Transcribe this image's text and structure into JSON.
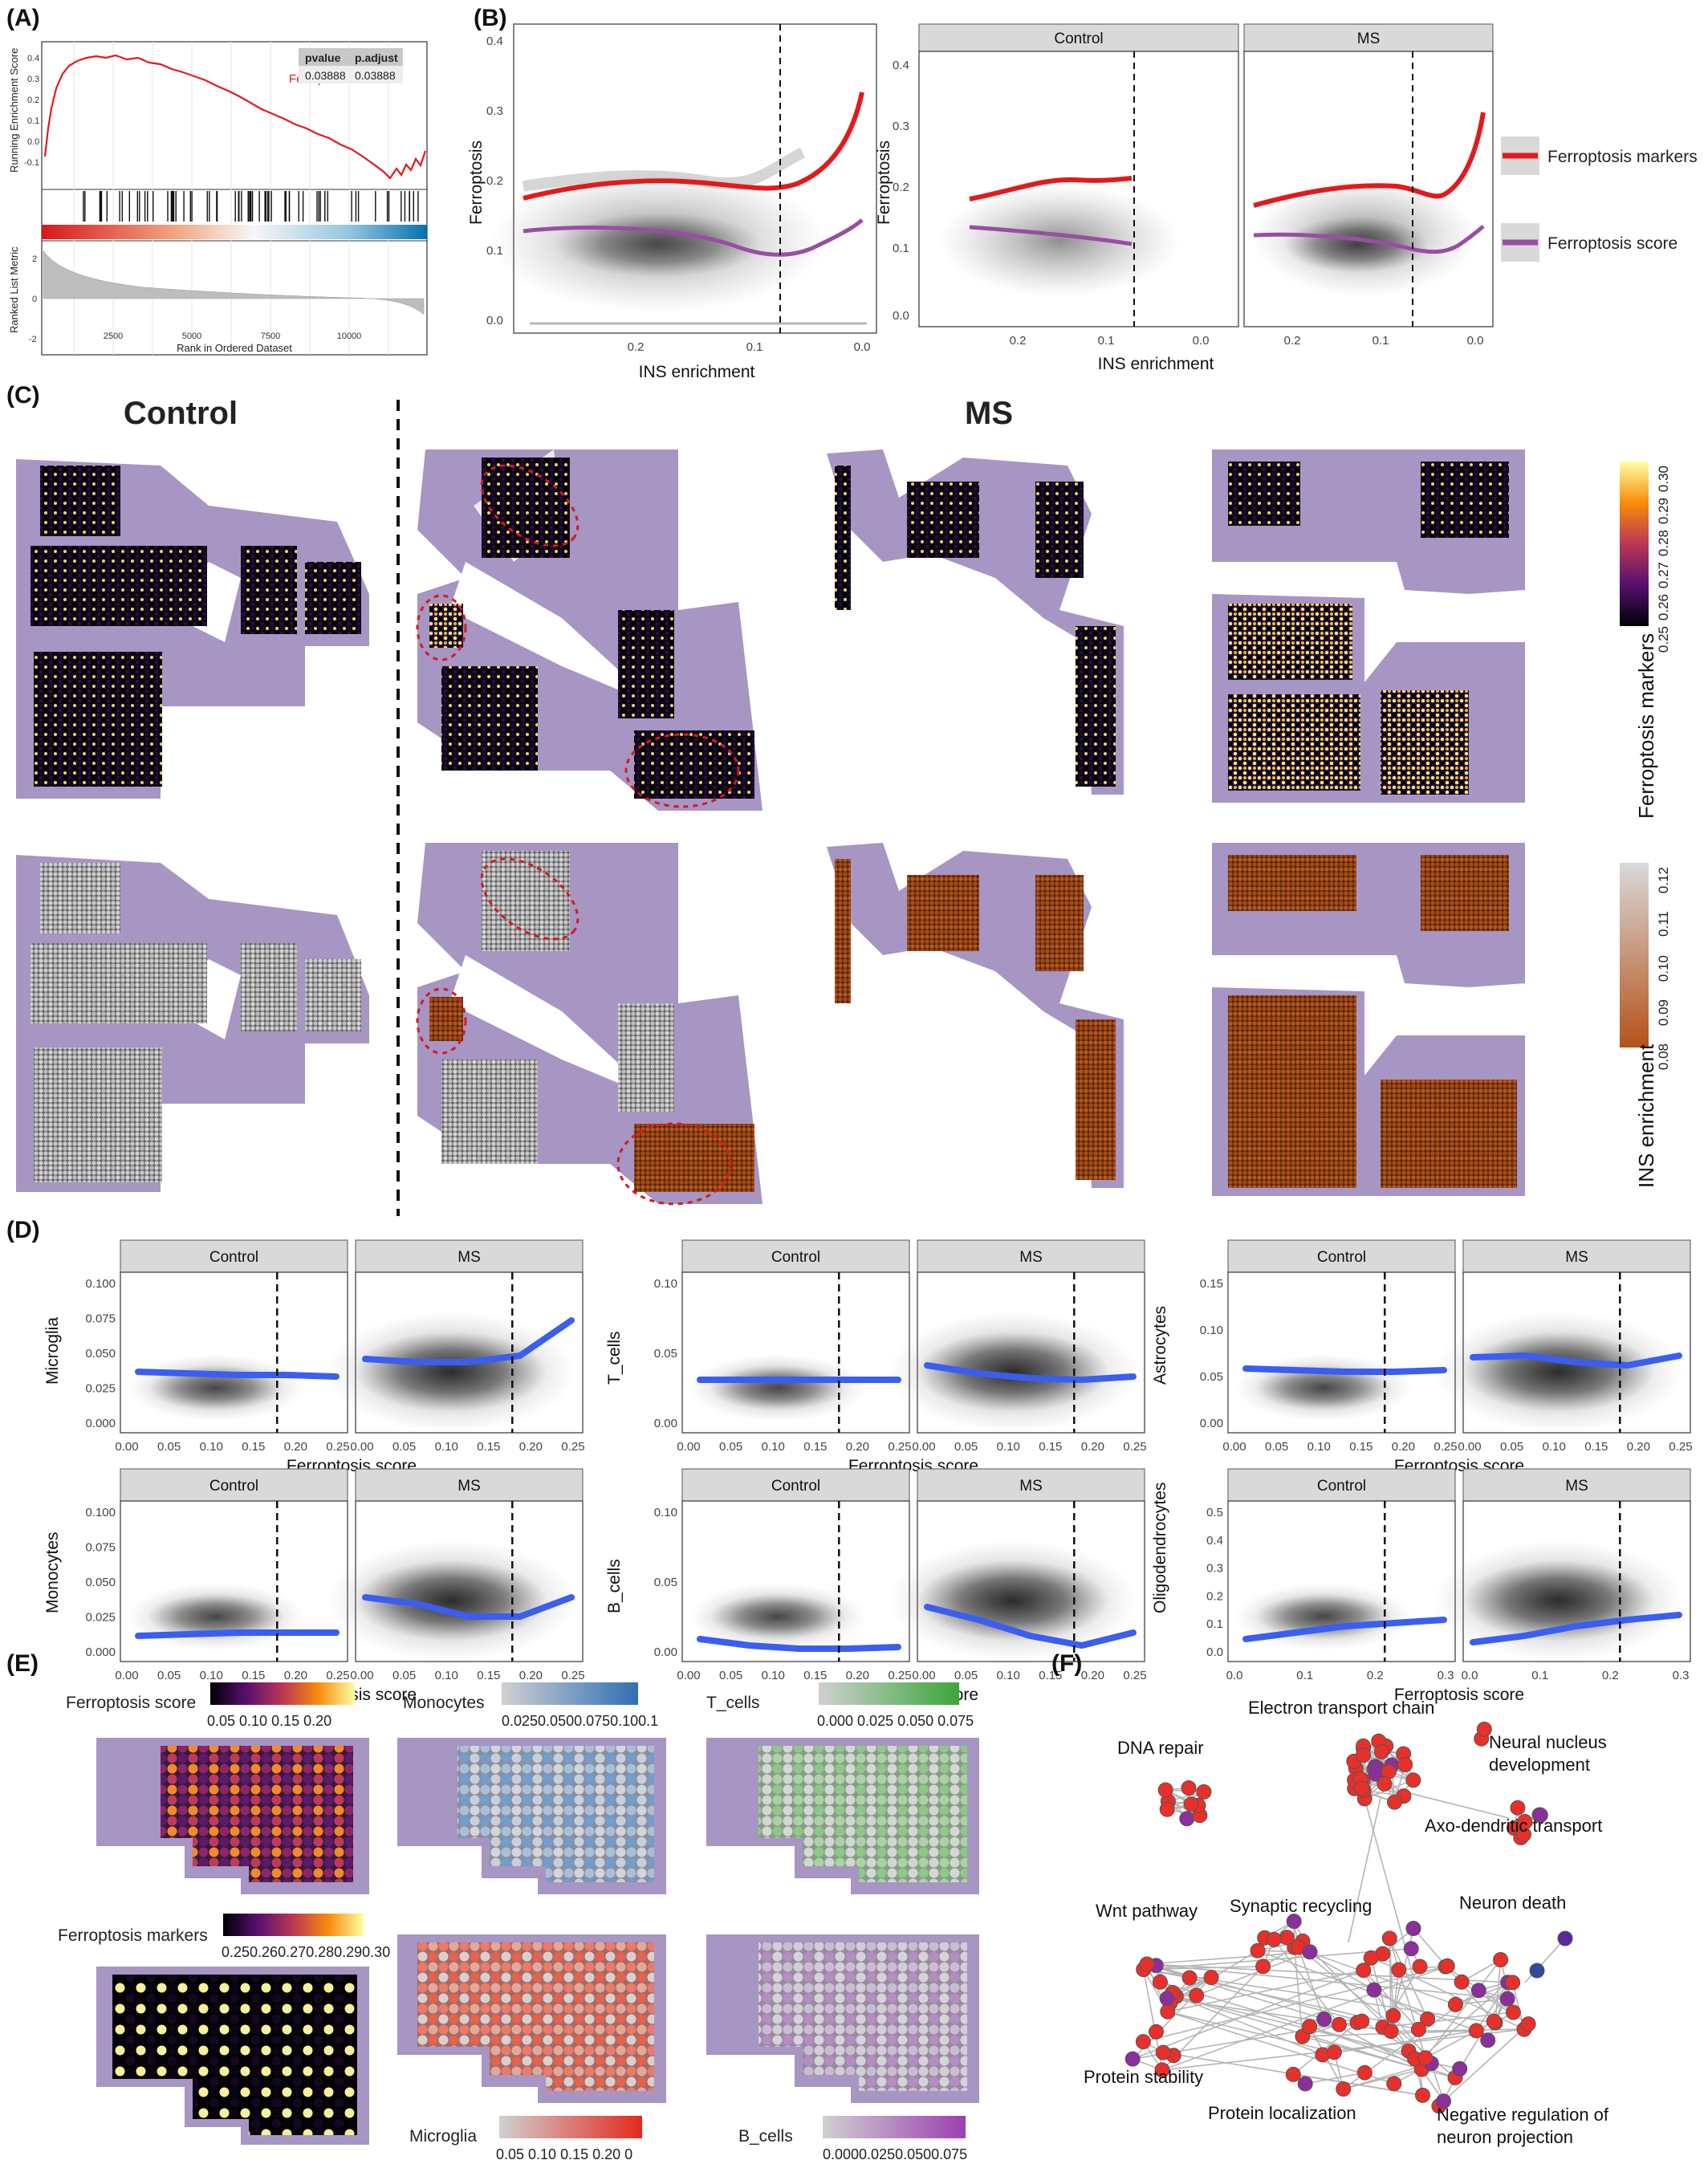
{
  "panels": {
    "A": "(A)",
    "B": "(B)",
    "C": "(C)",
    "D": "(D)",
    "E": "(E)",
    "F": "(F)"
  },
  "panelA": {
    "ylabel_top": "Running Enrichment Score",
    "ylabel_bottom": "Ranked List Metric",
    "xlabel": "Rank in Ordered Dataset",
    "geneset": "Ferroptosis",
    "table_headers": [
      "pvalue",
      "p.adjust"
    ],
    "table_values": [
      "0.03888",
      "0.03888"
    ],
    "es_ticks": [
      "0.4",
      "0.3",
      "0.2",
      "0.1",
      "0.0",
      "-0.1"
    ],
    "metric_ticks": [
      "2",
      "0",
      "-2"
    ],
    "x_ticks": [
      "2500",
      "5000",
      "7500",
      "10000"
    ]
  },
  "panelB": {
    "ylabel": "Ferroptosis",
    "xlabel": "INS enrichment",
    "y_ticks": [
      "0.4",
      "0.3",
      "0.2",
      "0.1",
      "0.0"
    ],
    "x_ticks": [
      "0.2",
      "0.1",
      "0.0"
    ],
    "strips": [
      "Control",
      "MS"
    ],
    "legend": [
      {
        "label": "Ferroptosis markers",
        "color": "#e31a1c"
      },
      {
        "label": "Ferroptosis score",
        "color": "#984ea3"
      }
    ]
  },
  "panelC": {
    "control_label": "Control",
    "ms_label": "MS",
    "colorbar1": {
      "title": "Ferroptosis markers",
      "ticks": [
        "0.30",
        "0.29",
        "0.28",
        "0.27",
        "0.26",
        "0.25"
      ]
    },
    "colorbar2": {
      "title": "INS enrichment",
      "ticks": [
        "0.12",
        "0.11",
        "0.10",
        "0.09",
        "0.08"
      ]
    }
  },
  "panelD": {
    "xlabel": "Ferroptosis score",
    "strips": [
      "Control",
      "MS"
    ],
    "plots": [
      {
        "ylabel": "Microglia",
        "yticks": [
          "0.100",
          "0.075",
          "0.050",
          "0.025",
          "0.000"
        ],
        "xticks": [
          "0.00",
          "0.05",
          "0.10",
          "0.15",
          "0.20",
          "0.25"
        ]
      },
      {
        "ylabel": "T_cells",
        "yticks": [
          "0.10",
          "0.05",
          "0.00"
        ],
        "xticks": [
          "0.00",
          "0.05",
          "0.10",
          "0.15",
          "0.20",
          "0.25"
        ]
      },
      {
        "ylabel": "Astrocytes",
        "yticks": [
          "0.15",
          "0.10",
          "0.05",
          "0.00"
        ],
        "xticks": [
          "0.00",
          "0.05",
          "0.10",
          "0.15",
          "0.20",
          "0.25"
        ]
      },
      {
        "ylabel": "Monocytes",
        "yticks": [
          "0.100",
          "0.075",
          "0.050",
          "0.025",
          "0.000"
        ],
        "xticks": [
          "0.00",
          "0.05",
          "0.10",
          "0.15",
          "0.20",
          "0.25"
        ]
      },
      {
        "ylabel": "B_cells",
        "yticks": [
          "0.10",
          "0.05",
          "0.00"
        ],
        "xticks": [
          "0.00",
          "0.05",
          "0.10",
          "0.15",
          "0.20",
          "0.25"
        ]
      },
      {
        "ylabel": "Oligodendrocytes",
        "yticks": [
          "0.5",
          "0.4",
          "0.3",
          "0.2",
          "0.1",
          "0.0"
        ],
        "xticks": [
          "0.0",
          "0.1",
          "0.2",
          "0.3"
        ]
      }
    ]
  },
  "panelE": {
    "legends": [
      {
        "title": "Ferroptosis score",
        "ticks": "0.05  0.10  0.15  0.20"
      },
      {
        "title": "Monocytes",
        "ticks": "0.0250.0500.0750.100.1"
      },
      {
        "title": "T_cells",
        "ticks": "0.000 0.025 0.050 0.075"
      },
      {
        "title": "Ferroptosis markers",
        "ticks": "0.250.260.270.280.290.30"
      },
      {
        "title": "Microglia",
        "ticks": "0.05 0.10 0.15 0.20 0"
      },
      {
        "title": "B_cells",
        "ticks": "0.0000.0250.0500.075"
      }
    ]
  },
  "panelF": {
    "labels": [
      "Electron transport chain",
      "DNA repair",
      "Neural nucleus",
      "development",
      "Axo-dendritic transport",
      "Wnt  pathway",
      "Synaptic recycling",
      "Neuron death",
      "Protein stability",
      "Protein localization",
      "Negative regulation of",
      "neuron projection"
    ]
  },
  "colors": {
    "red_curve": "#e31a1c",
    "purple_curve": "#984ea3",
    "blue_curve": "#3a5ef0",
    "tissue": "#a795c3",
    "node_red": "#e8302a"
  }
}
